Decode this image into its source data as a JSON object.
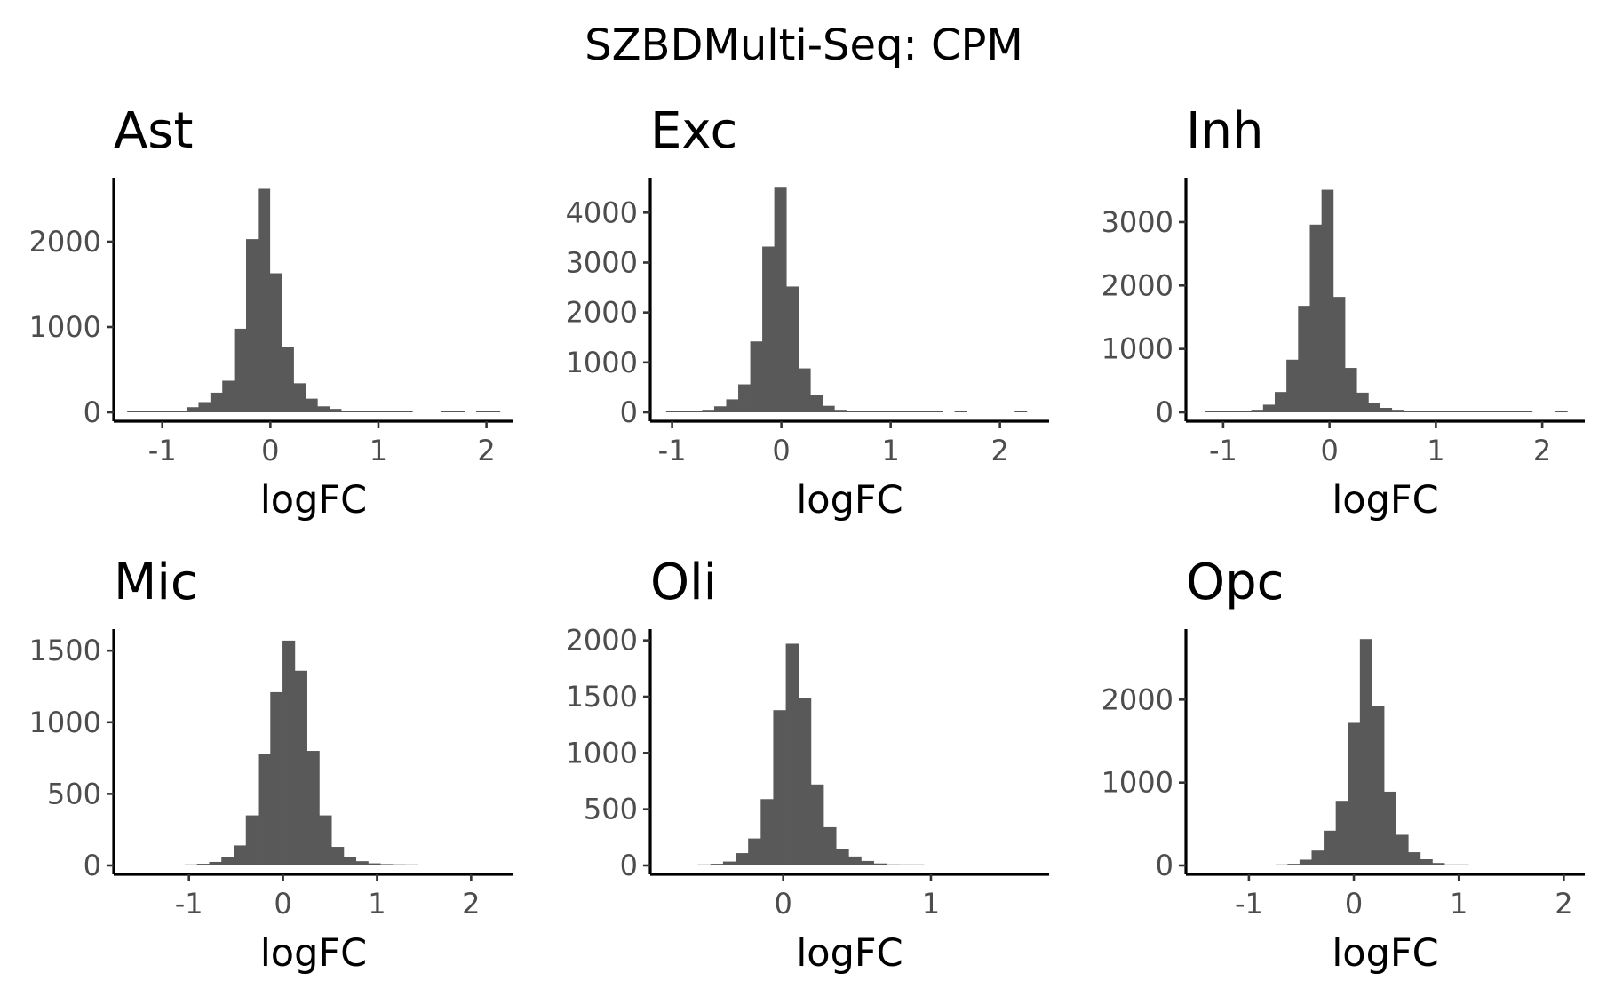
{
  "figure": {
    "title": "SZBDMulti-Seq: CPM"
  },
  "style": {
    "bar_color": "#595959",
    "axis_color": "#000000",
    "tick_text_color": "#4d4d4d"
  },
  "chart_data": [
    {
      "type": "bar",
      "title": "Ast",
      "xlabel": "logFC",
      "ylabel": "",
      "xlim": [
        -1.45,
        2.25
      ],
      "ylim": [
        0,
        2750
      ],
      "xticks": [
        -1,
        0,
        1,
        2
      ],
      "yticks": [
        0,
        1000,
        2000
      ],
      "bin_width": 0.11,
      "bins": [
        [
          -1.27,
          5
        ],
        [
          -1.16,
          5
        ],
        [
          -1.05,
          8
        ],
        [
          -0.94,
          10
        ],
        [
          -0.83,
          20
        ],
        [
          -0.72,
          60
        ],
        [
          -0.61,
          120
        ],
        [
          -0.5,
          230
        ],
        [
          -0.39,
          370
        ],
        [
          -0.28,
          980
        ],
        [
          -0.17,
          2030
        ],
        [
          -0.06,
          2620
        ],
        [
          0.05,
          1630
        ],
        [
          0.16,
          770
        ],
        [
          0.27,
          340
        ],
        [
          0.38,
          160
        ],
        [
          0.49,
          70
        ],
        [
          0.6,
          40
        ],
        [
          0.71,
          20
        ],
        [
          0.82,
          12
        ],
        [
          0.93,
          10
        ],
        [
          1.04,
          7
        ],
        [
          1.15,
          5
        ],
        [
          1.26,
          5
        ],
        [
          1.63,
          3
        ],
        [
          1.74,
          3
        ],
        [
          1.96,
          3
        ],
        [
          2.07,
          3
        ]
      ]
    },
    {
      "type": "bar",
      "title": "Exc",
      "xlabel": "logFC",
      "ylabel": "",
      "xlim": [
        -1.2,
        2.45
      ],
      "ylim": [
        0,
        4700
      ],
      "xticks": [
        -1,
        0,
        1,
        2
      ],
      "yticks": [
        0,
        1000,
        2000,
        3000,
        4000
      ],
      "bin_width": 0.11,
      "bins": [
        [
          -1.0,
          8
        ],
        [
          -0.89,
          12
        ],
        [
          -0.78,
          20
        ],
        [
          -0.67,
          50
        ],
        [
          -0.56,
          120
        ],
        [
          -0.45,
          260
        ],
        [
          -0.34,
          560
        ],
        [
          -0.23,
          1420
        ],
        [
          -0.12,
          3320
        ],
        [
          -0.01,
          4500
        ],
        [
          0.1,
          2520
        ],
        [
          0.21,
          880
        ],
        [
          0.32,
          340
        ],
        [
          0.43,
          130
        ],
        [
          0.54,
          50
        ],
        [
          0.65,
          25
        ],
        [
          0.76,
          15
        ],
        [
          0.87,
          10
        ],
        [
          0.98,
          8
        ],
        [
          1.09,
          5
        ],
        [
          1.2,
          5
        ],
        [
          1.31,
          5
        ],
        [
          1.42,
          4
        ],
        [
          1.64,
          3
        ],
        [
          2.19,
          3
        ]
      ]
    },
    {
      "type": "bar",
      "title": "Inh",
      "xlabel": "logFC",
      "ylabel": "",
      "xlim": [
        -1.35,
        2.4
      ],
      "ylim": [
        0,
        3700
      ],
      "xticks": [
        -1,
        0,
        1,
        2
      ],
      "yticks": [
        0,
        1000,
        2000,
        3000
      ],
      "bin_width": 0.11,
      "bins": [
        [
          -1.12,
          4
        ],
        [
          -1.01,
          4
        ],
        [
          -0.9,
          6
        ],
        [
          -0.79,
          12
        ],
        [
          -0.68,
          40
        ],
        [
          -0.57,
          120
        ],
        [
          -0.46,
          320
        ],
        [
          -0.35,
          830
        ],
        [
          -0.24,
          1680
        ],
        [
          -0.13,
          2960
        ],
        [
          -0.02,
          3510
        ],
        [
          0.09,
          1820
        ],
        [
          0.2,
          700
        ],
        [
          0.31,
          310
        ],
        [
          0.42,
          140
        ],
        [
          0.53,
          70
        ],
        [
          0.64,
          40
        ],
        [
          0.75,
          25
        ],
        [
          0.86,
          15
        ],
        [
          0.97,
          10
        ],
        [
          1.08,
          8
        ],
        [
          1.19,
          6
        ],
        [
          1.3,
          5
        ],
        [
          1.41,
          5
        ],
        [
          1.52,
          4
        ],
        [
          1.63,
          4
        ],
        [
          1.74,
          4
        ],
        [
          1.85,
          3
        ],
        [
          2.18,
          3
        ]
      ]
    },
    {
      "type": "bar",
      "title": "Mic",
      "xlabel": "logFC",
      "ylabel": "",
      "xlim": [
        -1.8,
        2.45
      ],
      "ylim": [
        0,
        1650
      ],
      "xticks": [
        -1,
        0,
        1,
        2
      ],
      "yticks": [
        0,
        500,
        1000,
        1500
      ],
      "bin_width": 0.13,
      "bins": [
        [
          -0.98,
          5
        ],
        [
          -0.85,
          12
        ],
        [
          -0.72,
          25
        ],
        [
          -0.59,
          60
        ],
        [
          -0.46,
          140
        ],
        [
          -0.33,
          350
        ],
        [
          -0.2,
          780
        ],
        [
          -0.07,
          1210
        ],
        [
          0.06,
          1570
        ],
        [
          0.19,
          1360
        ],
        [
          0.32,
          800
        ],
        [
          0.45,
          350
        ],
        [
          0.58,
          130
        ],
        [
          0.71,
          60
        ],
        [
          0.84,
          30
        ],
        [
          0.97,
          15
        ],
        [
          1.1,
          10
        ],
        [
          1.23,
          8
        ],
        [
          1.36,
          5
        ]
      ]
    },
    {
      "type": "bar",
      "title": "Oli",
      "xlabel": "logFC",
      "ylabel": "",
      "xlim": [
        -0.9,
        1.8
      ],
      "ylim": [
        0,
        2100
      ],
      "xticks": [
        0,
        1
      ],
      "yticks": [
        0,
        500,
        1000,
        1500,
        2000
      ],
      "bin_width": 0.085,
      "bins": [
        [
          -0.535,
          5
        ],
        [
          -0.45,
          15
        ],
        [
          -0.365,
          35
        ],
        [
          -0.28,
          110
        ],
        [
          -0.195,
          240
        ],
        [
          -0.11,
          590
        ],
        [
          -0.025,
          1380
        ],
        [
          0.06,
          1970
        ],
        [
          0.145,
          1490
        ],
        [
          0.23,
          720
        ],
        [
          0.315,
          340
        ],
        [
          0.4,
          150
        ],
        [
          0.485,
          80
        ],
        [
          0.57,
          40
        ],
        [
          0.655,
          18
        ],
        [
          0.74,
          10
        ],
        [
          0.825,
          8
        ],
        [
          0.91,
          5
        ]
      ]
    },
    {
      "type": "bar",
      "title": "Opc",
      "xlabel": "logFC",
      "ylabel": "",
      "xlim": [
        -1.6,
        2.2
      ],
      "ylim": [
        0,
        2850
      ],
      "xticks": [
        -1,
        0,
        1,
        2
      ],
      "yticks": [
        0,
        1000,
        2000
      ],
      "bin_width": 0.115,
      "bins": [
        [
          -0.69,
          5
        ],
        [
          -0.575,
          20
        ],
        [
          -0.46,
          70
        ],
        [
          -0.345,
          180
        ],
        [
          -0.23,
          420
        ],
        [
          -0.115,
          780
        ],
        [
          0.0,
          1720
        ],
        [
          0.115,
          2730
        ],
        [
          0.23,
          1920
        ],
        [
          0.345,
          890
        ],
        [
          0.46,
          370
        ],
        [
          0.575,
          160
        ],
        [
          0.69,
          75
        ],
        [
          0.805,
          30
        ],
        [
          0.92,
          12
        ],
        [
          1.035,
          5
        ]
      ]
    }
  ]
}
